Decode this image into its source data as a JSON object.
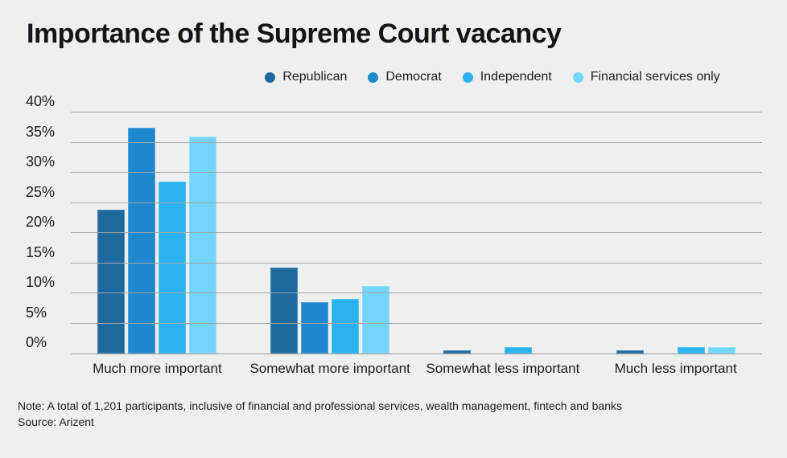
{
  "title": "Importance of the Supreme Court vacancy",
  "legend": {
    "items": [
      {
        "label": "Republican",
        "color": "#1d6a9f"
      },
      {
        "label": "Democrat",
        "color": "#1e87ce"
      },
      {
        "label": "Independent",
        "color": "#29b2ef"
      },
      {
        "label": "Financial services only",
        "color": "#73d5fc"
      }
    ]
  },
  "chart_data": {
    "type": "bar",
    "title": "Importance of the Supreme Court vacancy",
    "categories": [
      "Much more important",
      "Somewhat more important",
      "Somewhat less important",
      "Much less important"
    ],
    "series": [
      {
        "name": "Republican",
        "color": "#1d6a9f",
        "values": [
          23.9,
          14.3,
          0.5,
          0.5
        ]
      },
      {
        "name": "Democrat",
        "color": "#1e87ce",
        "values": [
          37.5,
          8.5,
          0,
          0
        ]
      },
      {
        "name": "Independent",
        "color": "#29b2ef",
        "values": [
          28.5,
          9.1,
          1,
          1
        ]
      },
      {
        "name": "Financial services only",
        "color": "#73d5fc",
        "values": [
          36,
          11.2,
          0,
          1
        ]
      }
    ],
    "xlabel": "",
    "ylabel": "",
    "ylim": [
      0,
      40
    ],
    "ytick_step": 5,
    "ytick_labels": [
      "0%",
      "5%",
      "10%",
      "15%",
      "20%",
      "25%",
      "30%",
      "35%",
      "40%"
    ],
    "grid": "horizontal",
    "legend_position": "top"
  },
  "notes": {
    "note": "Note: A total of 1,201 participants, inclusive of financial and professional services, wealth management, fintech and banks",
    "source": "Source: Arizent"
  },
  "colors": {
    "background": "#eef0ef",
    "gridline": "#a4a6a6",
    "axis": "#94989a",
    "text": "#17191b"
  }
}
